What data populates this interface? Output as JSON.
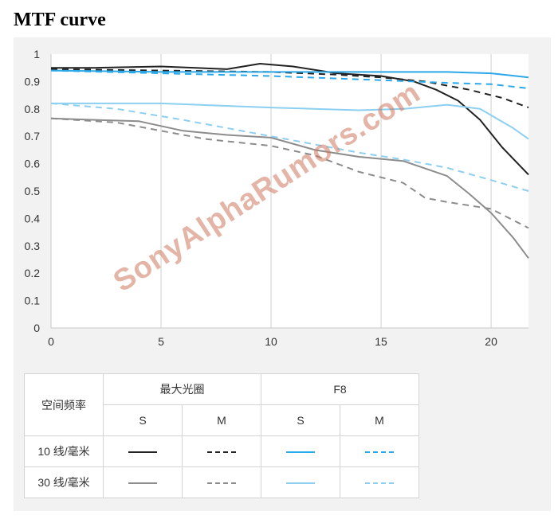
{
  "heading": "MTF curve",
  "watermark": "SonyAlphaRumors.com",
  "colors": {
    "black": "#222222",
    "gray": "#8c8c8c",
    "blue": "#2aa8e8",
    "lightblue": "#8dcff0"
  },
  "legend": {
    "row_header": "空间频率",
    "group_max": "最大光圈",
    "group_f8": "F8",
    "col_s": "S",
    "col_m": "M",
    "row_10": "10 线/毫米",
    "row_30": "30 线/毫米"
  },
  "chart_data": {
    "type": "line",
    "title": "",
    "xlabel": "",
    "ylabel": "",
    "xlim": [
      0,
      21.7
    ],
    "ylim": [
      0,
      1
    ],
    "xticks": [
      0,
      5,
      10,
      15,
      20
    ],
    "yticks": [
      0,
      0.1,
      0.2,
      0.3,
      0.4,
      0.5,
      0.6,
      0.7,
      0.8,
      0.9,
      1
    ],
    "ytick_labels": [
      "0",
      "0.1",
      "0.2",
      "0.3",
      "0.4",
      "0.5",
      "0.6",
      "0.7",
      "0.8",
      "0.9",
      "1"
    ],
    "grid": "vertical",
    "series": [
      {
        "key": "max_10_S",
        "color": "black",
        "dash": "solid",
        "x": [
          0,
          2,
          5,
          8,
          9.5,
          11,
          13,
          15,
          16.5,
          17.5,
          18.5,
          19.5,
          20.5,
          21.7
        ],
        "y": [
          0.95,
          0.95,
          0.955,
          0.945,
          0.965,
          0.955,
          0.93,
          0.92,
          0.9,
          0.87,
          0.83,
          0.76,
          0.66,
          0.56
        ]
      },
      {
        "key": "max_10_M",
        "color": "black",
        "dash": "dashed",
        "x": [
          0,
          5,
          10,
          13,
          15,
          17,
          19,
          20.5,
          21.7
        ],
        "y": [
          0.945,
          0.94,
          0.935,
          0.925,
          0.915,
          0.9,
          0.87,
          0.84,
          0.805
        ]
      },
      {
        "key": "f8_10_S",
        "color": "blue",
        "dash": "solid",
        "x": [
          0,
          5,
          10,
          15,
          18,
          20,
          21.7
        ],
        "y": [
          0.94,
          0.935,
          0.935,
          0.935,
          0.935,
          0.93,
          0.915
        ]
      },
      {
        "key": "f8_10_M",
        "color": "blue",
        "dash": "dashed",
        "x": [
          0,
          5,
          10,
          15,
          18,
          20,
          21.7
        ],
        "y": [
          0.94,
          0.93,
          0.92,
          0.905,
          0.895,
          0.89,
          0.875
        ]
      },
      {
        "key": "max_30_S",
        "color": "gray",
        "dash": "solid",
        "x": [
          0,
          2,
          4,
          6,
          8,
          10,
          12,
          14,
          16,
          18,
          19,
          20,
          21,
          21.7
        ],
        "y": [
          0.765,
          0.76,
          0.755,
          0.72,
          0.705,
          0.695,
          0.65,
          0.625,
          0.61,
          0.555,
          0.49,
          0.42,
          0.33,
          0.255
        ]
      },
      {
        "key": "max_30_M",
        "color": "gray",
        "dash": "dashed",
        "x": [
          0,
          3,
          5,
          7,
          10,
          12,
          14,
          16,
          17,
          18,
          20,
          21.7
        ],
        "y": [
          0.765,
          0.75,
          0.72,
          0.69,
          0.665,
          0.63,
          0.57,
          0.53,
          0.475,
          0.46,
          0.435,
          0.365
        ]
      },
      {
        "key": "f8_30_S",
        "color": "lightblue",
        "dash": "solid",
        "x": [
          0,
          5,
          10,
          14,
          16,
          18,
          19.5,
          21,
          21.7
        ],
        "y": [
          0.82,
          0.82,
          0.805,
          0.795,
          0.8,
          0.815,
          0.8,
          0.73,
          0.69
        ]
      },
      {
        "key": "f8_30_M",
        "color": "lightblue",
        "dash": "dashed",
        "x": [
          0,
          3,
          6,
          10,
          14,
          16,
          18,
          20,
          21.7
        ],
        "y": [
          0.82,
          0.8,
          0.76,
          0.7,
          0.64,
          0.615,
          0.585,
          0.54,
          0.5
        ]
      }
    ]
  }
}
